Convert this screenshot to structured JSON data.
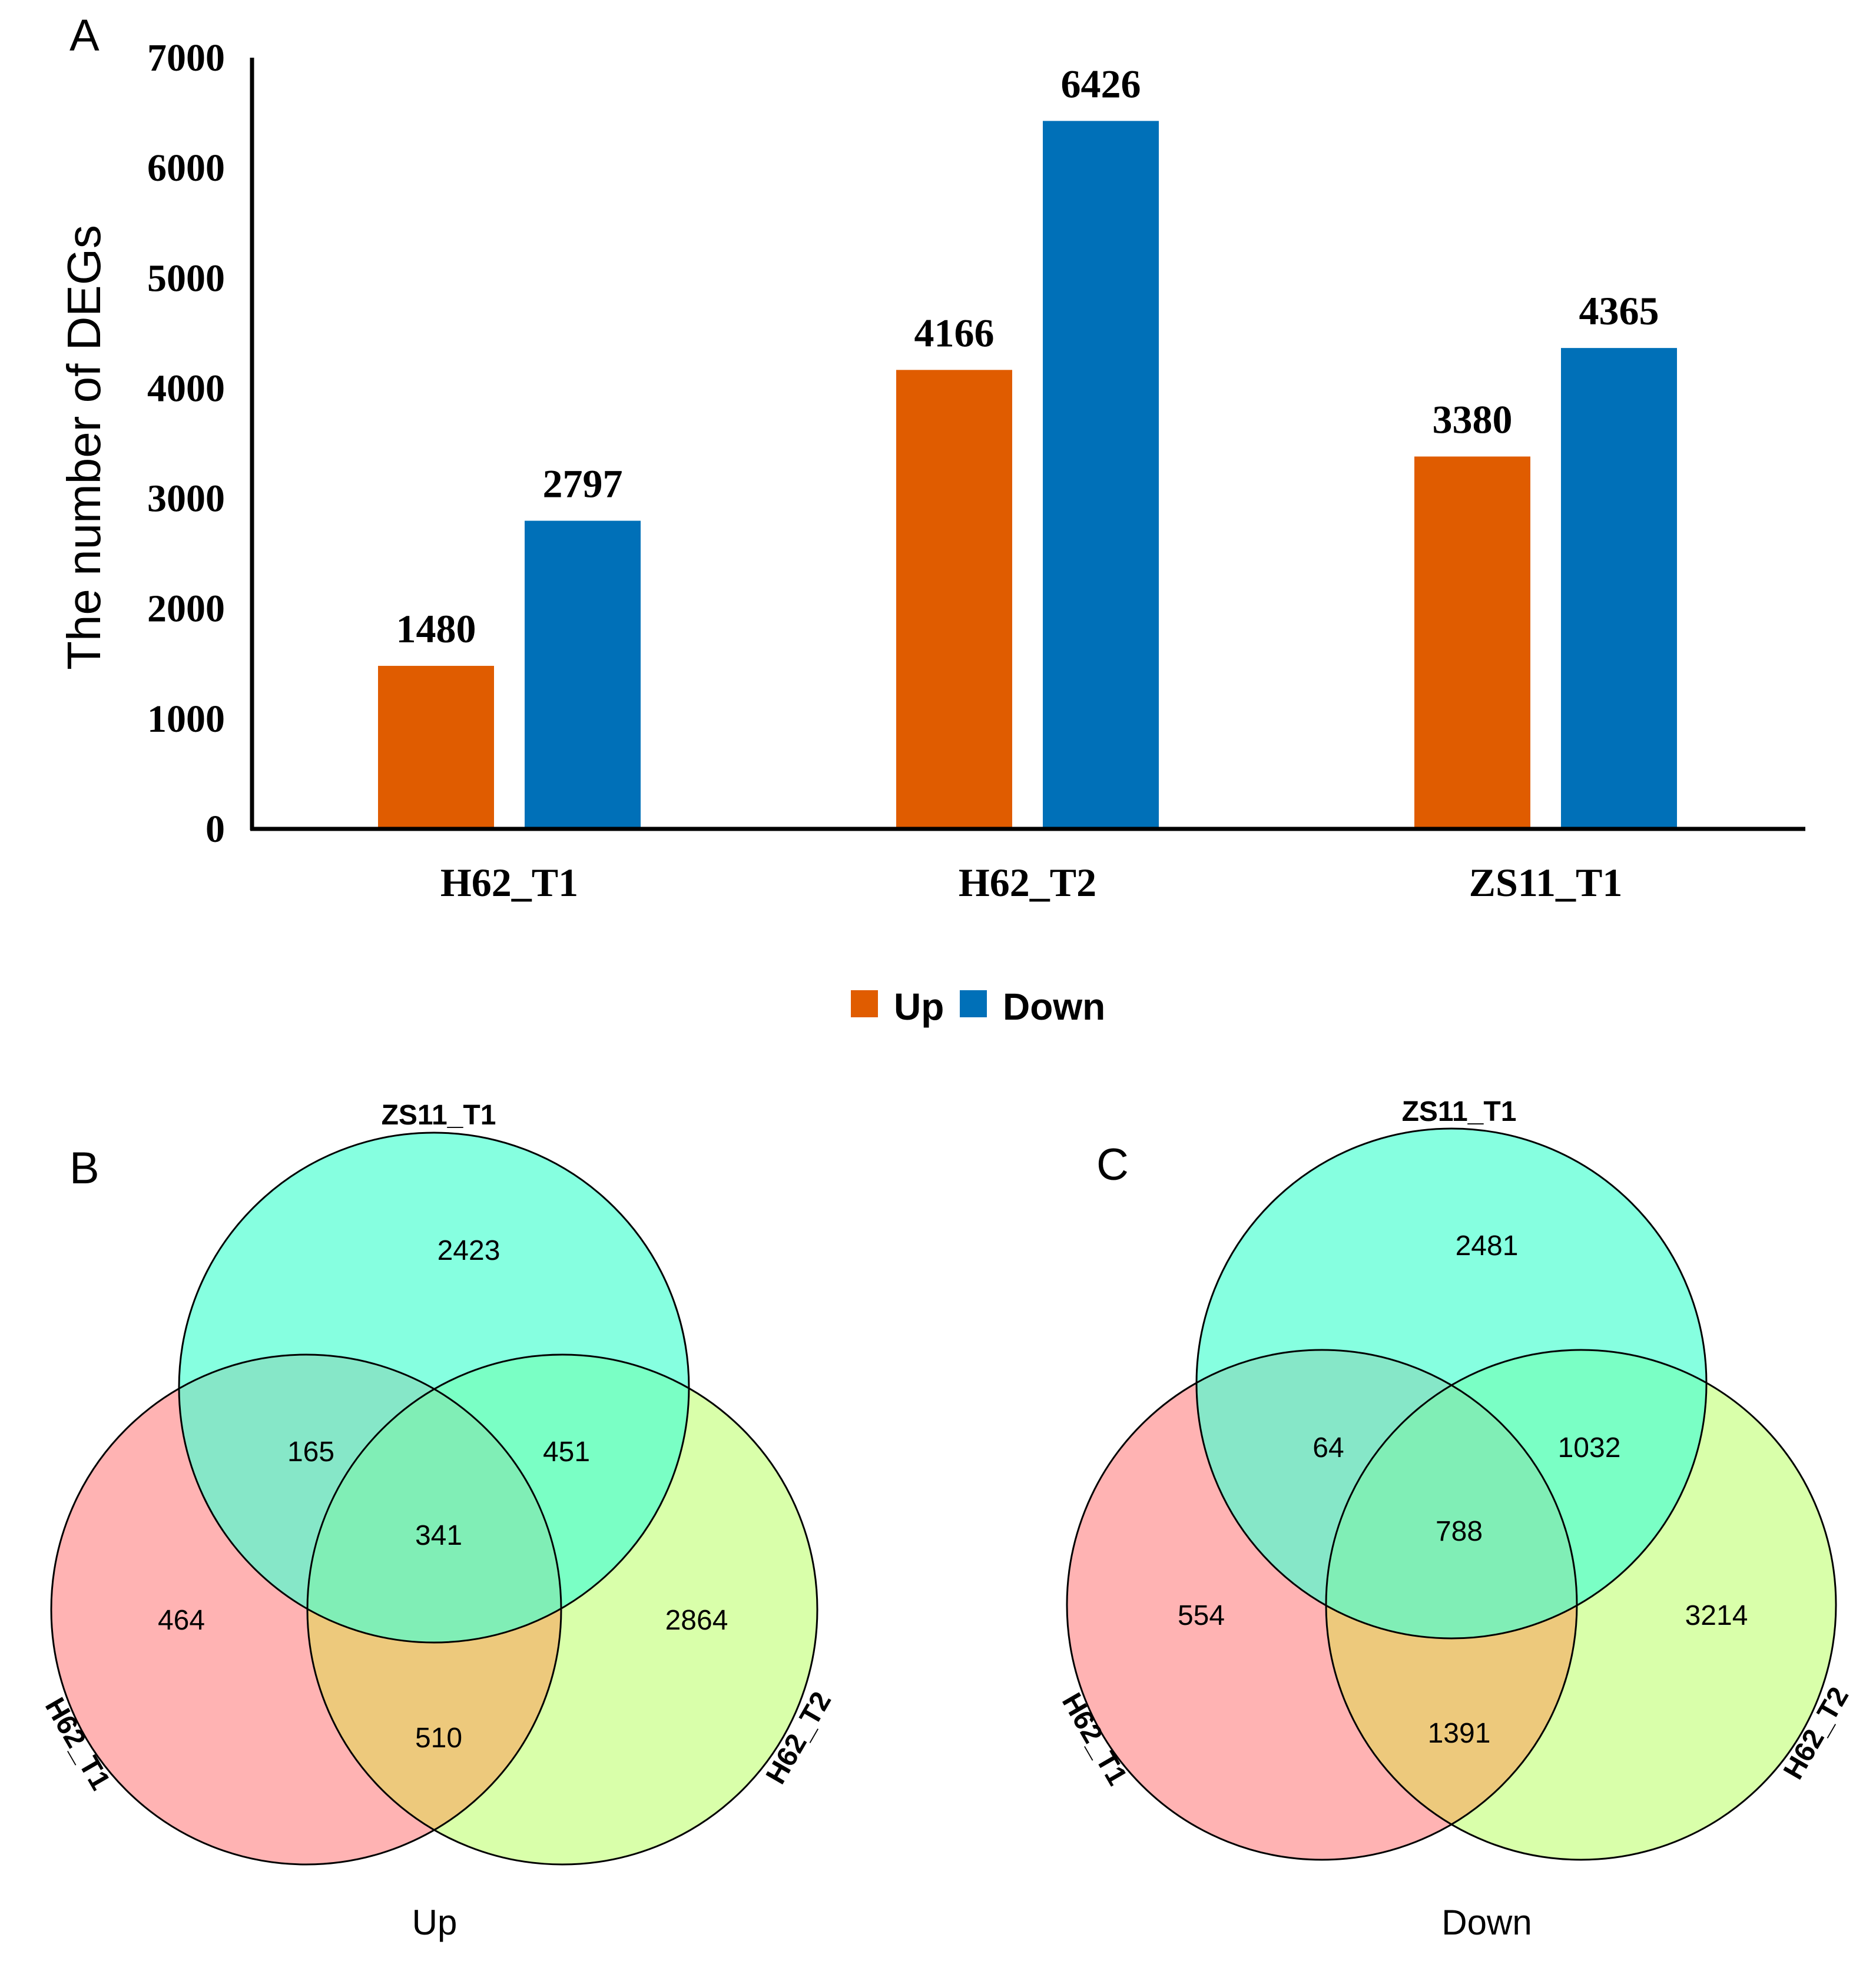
{
  "chart_data": [
    {
      "type": "bar",
      "panel_label": "A",
      "title": "",
      "xlabel": "",
      "ylabel": "The number of DEGs",
      "ylim": [
        0,
        7000
      ],
      "yticks": [
        "0",
        "1000",
        "2000",
        "3000",
        "4000",
        "5000",
        "6000",
        "7000"
      ],
      "categories": [
        "H62_T1",
        "H62_T2",
        "ZS11_T1"
      ],
      "series": [
        {
          "name": "Up",
          "color": "#e05c00",
          "values": [
            1480,
            4166,
            3380
          ]
        },
        {
          "name": "Down",
          "color": "#0070b8",
          "values": [
            2797,
            6426,
            4365
          ]
        }
      ],
      "legend_position": "bottom-center",
      "grid": false
    },
    {
      "type": "venn",
      "panel_label": "B",
      "caption": "Up",
      "sets": [
        {
          "name": "ZS11_T1",
          "color": "#4dffd2"
        },
        {
          "name": "H62_T1",
          "color": "#ff7b7b"
        },
        {
          "name": "H62_T2",
          "color": "#c2ff6e"
        }
      ],
      "regions": {
        "zs11_only": "2423",
        "h62t1_only": "464",
        "h62t2_only": "2864",
        "zs11_h62t1": "165",
        "zs11_h62t2": "451",
        "h62t1_h62t2": "510",
        "all_three": "341"
      }
    },
    {
      "type": "venn",
      "panel_label": "C",
      "caption": "Down",
      "sets": [
        {
          "name": "ZS11_T1",
          "color": "#4dffd2"
        },
        {
          "name": "H62_T1",
          "color": "#ff7b7b"
        },
        {
          "name": "H62_T2",
          "color": "#c2ff6e"
        }
      ],
      "regions": {
        "zs11_only": "2481",
        "h62t1_only": "554",
        "h62t2_only": "3214",
        "zs11_h62t1": "64",
        "zs11_h62t2": "1032",
        "h62t1_h62t2": "1391",
        "all_three": "788"
      }
    }
  ]
}
